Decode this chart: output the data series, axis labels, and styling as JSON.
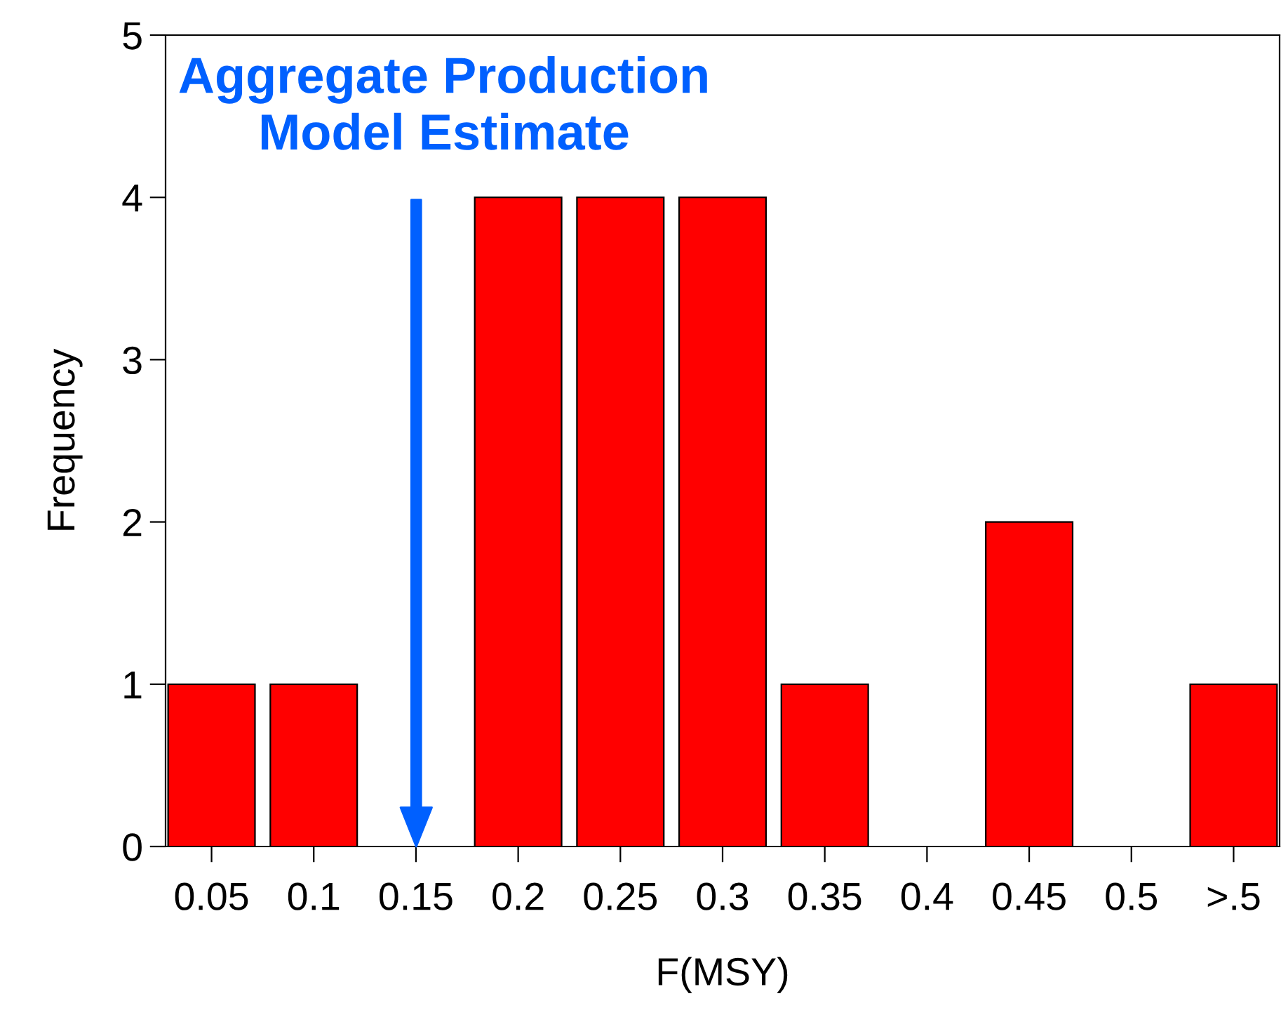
{
  "chart_data": {
    "type": "bar",
    "xlabel": "F(MSY)",
    "ylabel": "Frequency",
    "categories": [
      "0.05",
      "0.1",
      "0.15",
      "0.2",
      "0.25",
      "0.3",
      "0.35",
      "0.4",
      "0.45",
      "0.5",
      ">.5"
    ],
    "values": [
      1,
      1,
      0,
      4,
      4,
      4,
      1,
      0,
      2,
      0,
      1
    ],
    "color": "#ff0000",
    "ylim": [
      0,
      5
    ],
    "yticks": [
      0,
      1,
      2,
      3,
      4,
      5
    ],
    "grid": false,
    "annotations": [
      "Aggregate Production\nModel Estimate"
    ]
  }
}
